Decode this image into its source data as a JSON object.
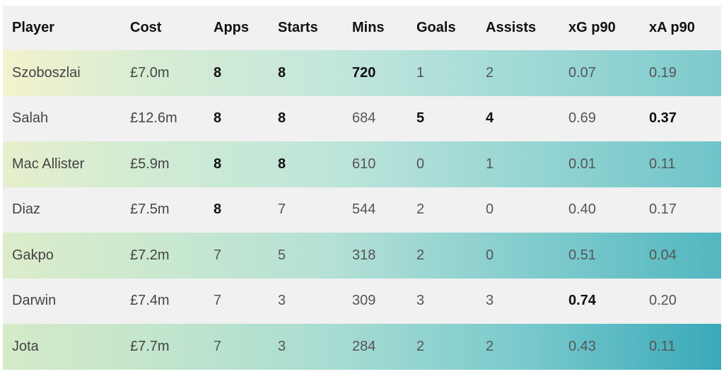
{
  "table": {
    "headers": [
      "Player",
      "Cost",
      "Apps",
      "Starts",
      "Mins",
      "Goals",
      "Assists",
      "xG p90",
      "xA p90"
    ],
    "rows": [
      {
        "player": "Szoboszlai",
        "cost": "£7.0m",
        "apps": "8",
        "starts": "8",
        "mins": "720",
        "goals": "1",
        "assists": "2",
        "xg_p90": "0.07",
        "xa_p90": "0.19"
      },
      {
        "player": "Salah",
        "cost": "£12.6m",
        "apps": "8",
        "starts": "8",
        "mins": "684",
        "goals": "5",
        "assists": "4",
        "xg_p90": "0.69",
        "xa_p90": "0.37"
      },
      {
        "player": "Mac Allister",
        "cost": "£5.9m",
        "apps": "8",
        "starts": "8",
        "mins": "610",
        "goals": "0",
        "assists": "1",
        "xg_p90": "0.01",
        "xa_p90": "0.11"
      },
      {
        "player": "Diaz",
        "cost": "£7.5m",
        "apps": "8",
        "starts": "7",
        "mins": "544",
        "goals": "2",
        "assists": "0",
        "xg_p90": "0.40",
        "xa_p90": "0.17"
      },
      {
        "player": "Gakpo",
        "cost": "£7.2m",
        "apps": "7",
        "starts": "5",
        "mins": "318",
        "goals": "2",
        "assists": "0",
        "xg_p90": "0.51",
        "xa_p90": "0.04"
      },
      {
        "player": "Darwin",
        "cost": "£7.4m",
        "apps": "7",
        "starts": "3",
        "mins": "309",
        "goals": "3",
        "assists": "3",
        "xg_p90": "0.74",
        "xa_p90": "0.20"
      },
      {
        "player": "Jota",
        "cost": "£7.7m",
        "apps": "7",
        "starts": "3",
        "mins": "284",
        "goals": "2",
        "assists": "2",
        "xg_p90": "0.43",
        "xa_p90": "0.11"
      }
    ]
  },
  "colors": {
    "header_bg": "#f1f1f1",
    "plain_row_bg": "#f1f1f1",
    "gradient_start": "#f3f2cd",
    "gradient_end": "#3aa9b9"
  }
}
